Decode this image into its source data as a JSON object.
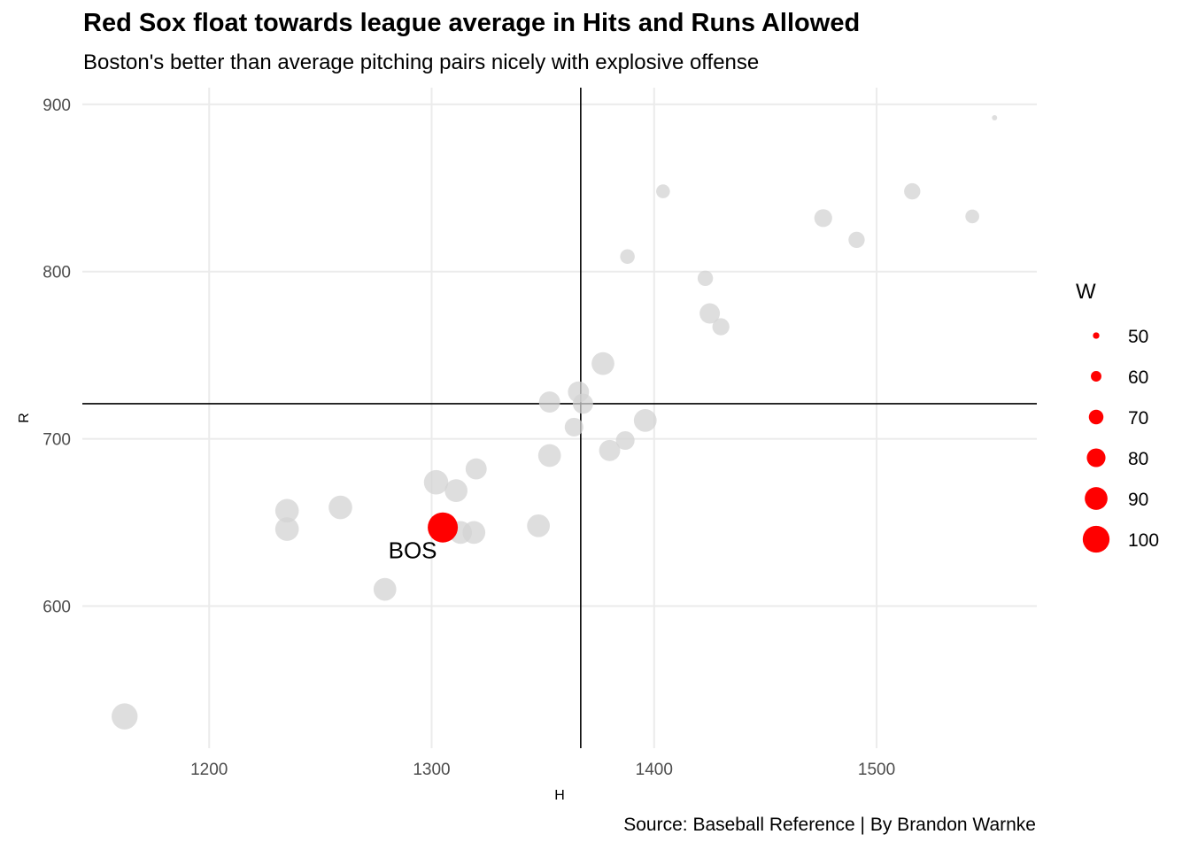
{
  "title": "Red Sox float towards league average in Hits and Runs Allowed",
  "subtitle": "Boston's better than average pitching pairs nicely with explosive offense",
  "caption": "Source: Baseball Reference | By Brandon Warnke",
  "colors": {
    "highlight": "#ff0000",
    "others": "#d3d3d3",
    "grid": "#ebebeb",
    "reference_lines": "#000000"
  },
  "chart_data": {
    "type": "scatter",
    "xlabel": "H",
    "ylabel": "R",
    "xlim": [
      1143,
      1572
    ],
    "ylim": [
      515,
      910
    ],
    "x_ticks": [
      1200,
      1300,
      1400,
      1500
    ],
    "y_ticks": [
      600,
      700,
      800,
      900
    ],
    "grid": true,
    "reference_lines": {
      "x": 1367,
      "y": 721
    },
    "size_legend": {
      "title": "W",
      "placement": "right",
      "values": [
        50,
        60,
        70,
        80,
        90,
        100
      ]
    },
    "points": [
      {
        "h": 1162,
        "r": 534,
        "w": 98
      },
      {
        "h": 1235,
        "r": 657,
        "w": 92
      },
      {
        "h": 1235,
        "r": 646,
        "w": 92
      },
      {
        "h": 1259,
        "r": 659,
        "w": 92
      },
      {
        "h": 1279,
        "r": 610,
        "w": 90
      },
      {
        "h": 1302,
        "r": 674,
        "w": 94
      },
      {
        "h": 1305,
        "r": 647,
        "w": 108,
        "label": "BOS",
        "highlight": true
      },
      {
        "h": 1311,
        "r": 669,
        "w": 90
      },
      {
        "h": 1313,
        "r": 644,
        "w": 90
      },
      {
        "h": 1319,
        "r": 644,
        "w": 90
      },
      {
        "h": 1320,
        "r": 682,
        "w": 86
      },
      {
        "h": 1348,
        "r": 648,
        "w": 90
      },
      {
        "h": 1353,
        "r": 722,
        "w": 86
      },
      {
        "h": 1353,
        "r": 690,
        "w": 90
      },
      {
        "h": 1364,
        "r": 707,
        "w": 80
      },
      {
        "h": 1366,
        "r": 728,
        "w": 86
      },
      {
        "h": 1368,
        "r": 721,
        "w": 84
      },
      {
        "h": 1377,
        "r": 745,
        "w": 90
      },
      {
        "h": 1380,
        "r": 693,
        "w": 86
      },
      {
        "h": 1387,
        "r": 699,
        "w": 80
      },
      {
        "h": 1388,
        "r": 809,
        "w": 70
      },
      {
        "h": 1396,
        "r": 711,
        "w": 90
      },
      {
        "h": 1404,
        "r": 848,
        "w": 68
      },
      {
        "h": 1423,
        "r": 796,
        "w": 72
      },
      {
        "h": 1425,
        "r": 775,
        "w": 84
      },
      {
        "h": 1430,
        "r": 767,
        "w": 76
      },
      {
        "h": 1476,
        "r": 832,
        "w": 78
      },
      {
        "h": 1491,
        "r": 819,
        "w": 74
      },
      {
        "h": 1516,
        "r": 848,
        "w": 74
      },
      {
        "h": 1543,
        "r": 833,
        "w": 68
      },
      {
        "h": 1553,
        "r": 892,
        "w": 47
      }
    ]
  }
}
